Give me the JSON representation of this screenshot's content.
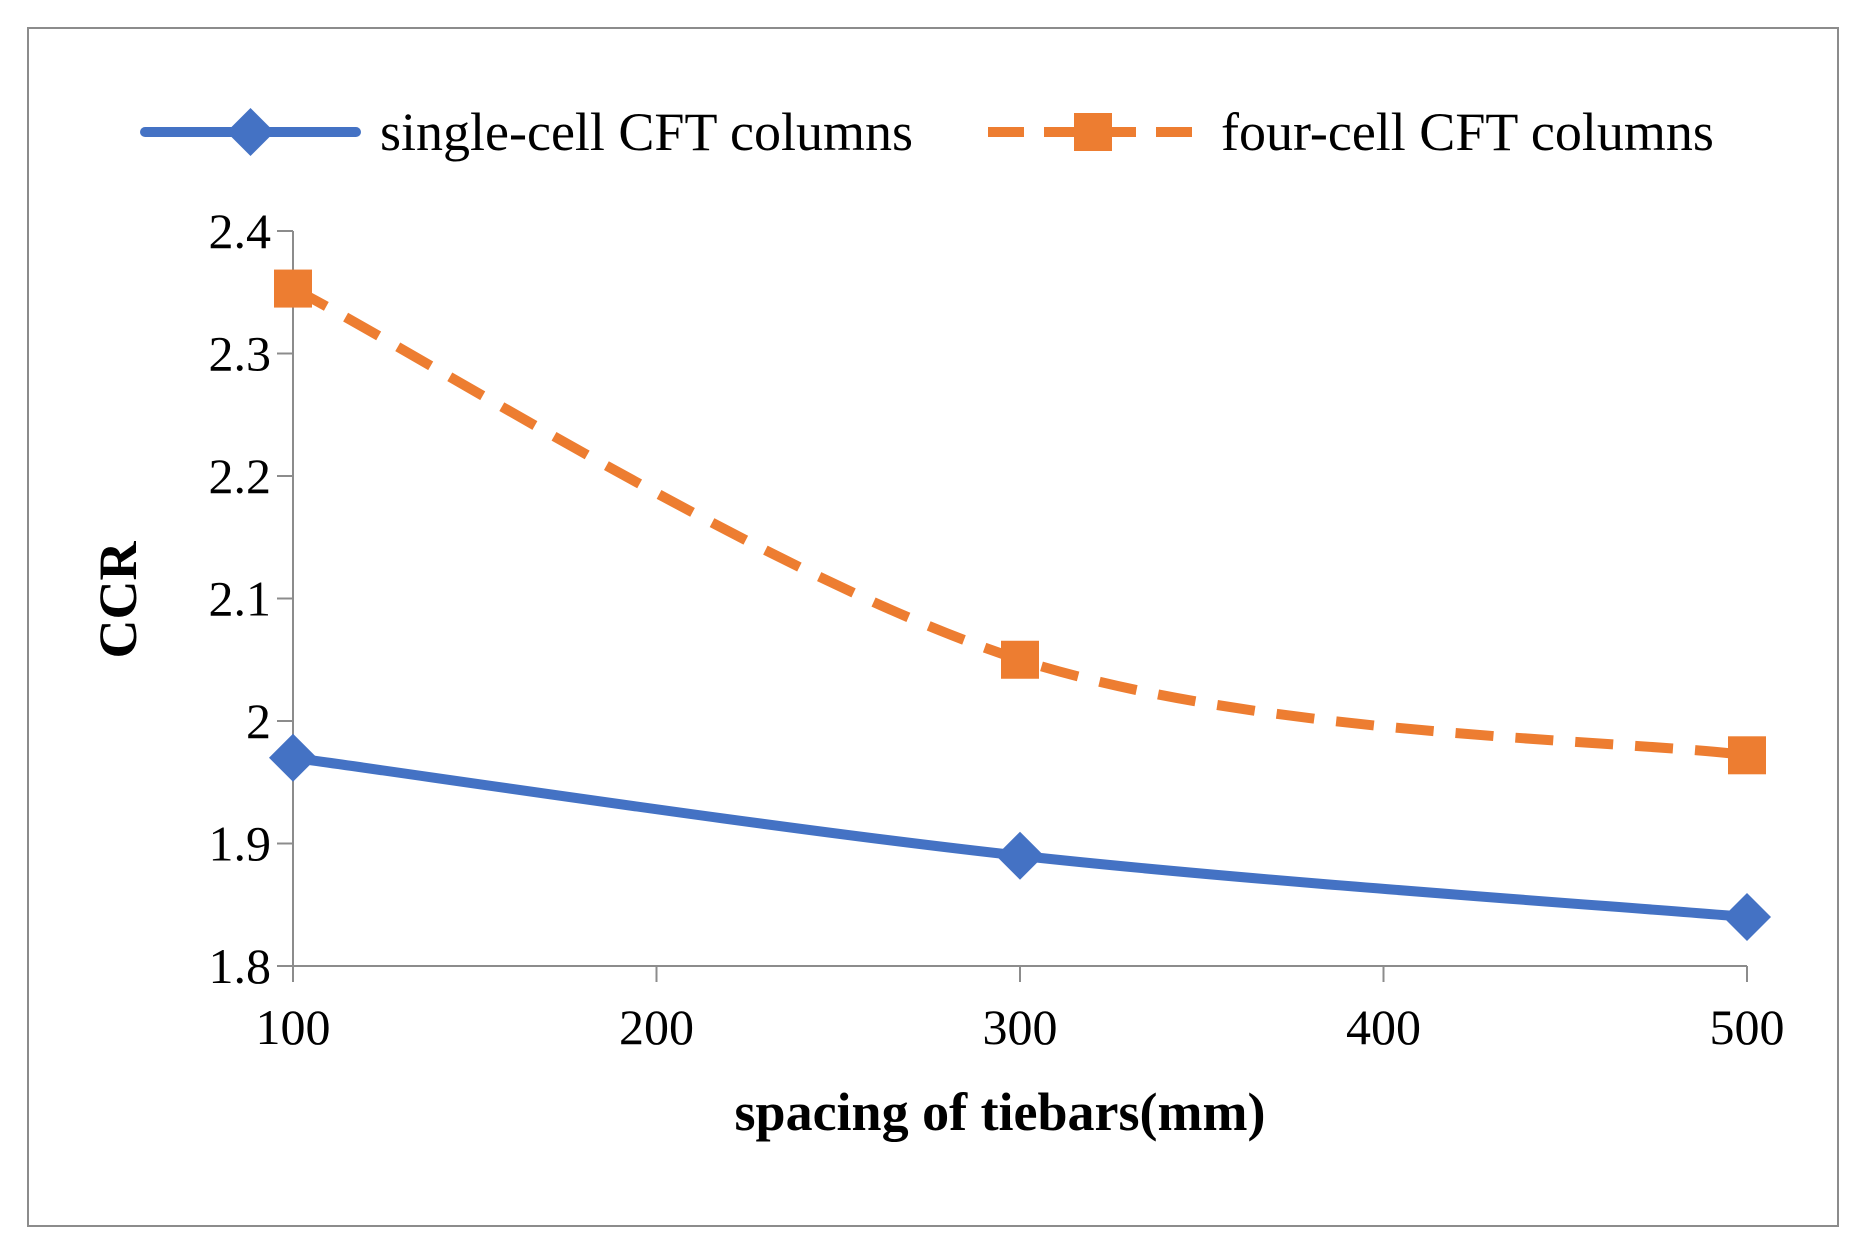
{
  "chart_data": {
    "type": "line",
    "title": "",
    "xlabel": "spacing of tiebars(mm)",
    "ylabel": "CCR",
    "x": [
      100,
      300,
      500
    ],
    "xticks": [
      "100",
      "200",
      "300",
      "400",
      "500"
    ],
    "xtick_values": [
      100,
      200,
      300,
      400,
      500
    ],
    "yticks": [
      "1.8",
      "1.9",
      "2",
      "2.1",
      "2.2",
      "2.3",
      "2.4"
    ],
    "ytick_values": [
      1.8,
      1.9,
      2.0,
      2.1,
      2.2,
      2.3,
      2.4
    ],
    "xlim": [
      100,
      500
    ],
    "ylim": [
      1.8,
      2.4
    ],
    "grid": false,
    "legend_position": "top",
    "series": [
      {
        "name": "single-cell CFT columns",
        "values": [
          1.97,
          1.89,
          1.84
        ],
        "color": "#4472c4",
        "line_style": "solid",
        "marker": "diamond"
      },
      {
        "name": "four-cell CFT columns",
        "values": [
          2.353,
          2.05,
          1.972
        ],
        "color": "#ed7d31",
        "line_style": "dashed",
        "marker": "square"
      }
    ]
  }
}
